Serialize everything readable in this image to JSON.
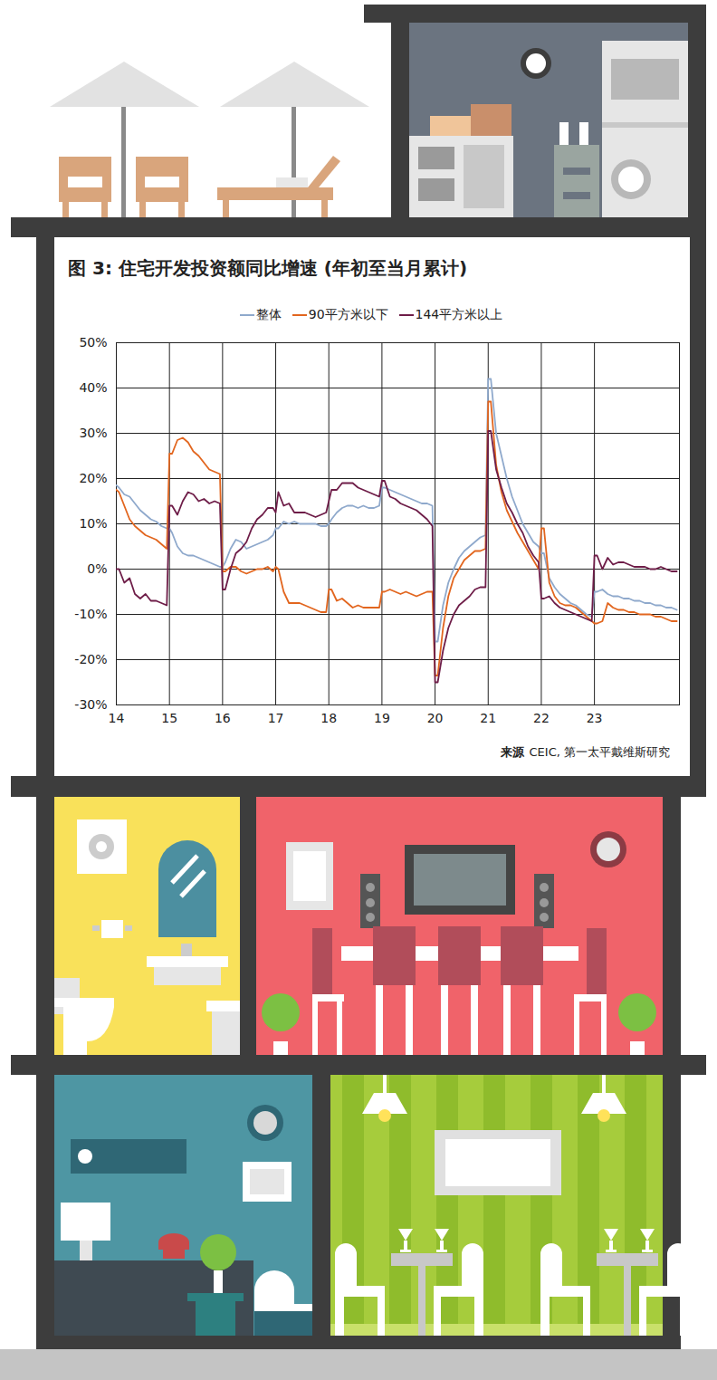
{
  "chart_data": {
    "type": "line",
    "title": "图  3: 住宅开发投资额同比增速 (年初至当月累计)",
    "source_label": "来源",
    "source": "CEIC, 第一太平戴维斯研究",
    "legend": "top",
    "grid": true,
    "xlim": [
      14,
      24.6
    ],
    "xticks": [
      14,
      15,
      16,
      17,
      18,
      19,
      20,
      21,
      22,
      23
    ],
    "ylim": [
      -30,
      50
    ],
    "yticks": [
      {
        "value": -30,
        "label": "-30%"
      },
      {
        "value": -20,
        "label": "-20%"
      },
      {
        "value": -10,
        "label": "-10%"
      },
      {
        "value": 0,
        "label": "0%"
      },
      {
        "value": 10,
        "label": "10%"
      },
      {
        "value": 20,
        "label": "20%"
      },
      {
        "value": 30,
        "label": "30%"
      },
      {
        "value": 40,
        "label": "40%"
      },
      {
        "value": 50,
        "label": "50%"
      }
    ],
    "x": [
      14,
      14.05,
      14.15,
      14.25,
      14.35,
      14.45,
      14.55,
      14.65,
      14.75,
      14.85,
      14.95,
      15,
      15.05,
      15.15,
      15.25,
      15.35,
      15.45,
      15.55,
      15.65,
      15.75,
      15.85,
      15.95,
      16,
      16.05,
      16.15,
      16.25,
      16.35,
      16.45,
      16.55,
      16.65,
      16.75,
      16.85,
      16.95,
      17,
      17.05,
      17.15,
      17.25,
      17.35,
      17.45,
      17.55,
      17.65,
      17.75,
      17.85,
      17.95,
      18,
      18.05,
      18.15,
      18.25,
      18.35,
      18.45,
      18.55,
      18.65,
      18.75,
      18.85,
      18.95,
      19,
      19.05,
      19.15,
      19.25,
      19.35,
      19.45,
      19.55,
      19.65,
      19.75,
      19.85,
      19.95,
      20,
      20.05,
      20.15,
      20.25,
      20.35,
      20.45,
      20.55,
      20.65,
      20.75,
      20.85,
      20.95,
      21,
      21.05,
      21.15,
      21.25,
      21.35,
      21.45,
      21.55,
      21.65,
      21.75,
      21.85,
      21.95,
      22,
      22.05,
      22.15,
      22.25,
      22.35,
      22.45,
      22.55,
      22.65,
      22.75,
      22.85,
      22.95,
      23,
      23.05,
      23.15,
      23.25,
      23.35,
      23.45,
      23.55,
      23.65,
      23.75,
      23.85,
      23.95,
      24.05,
      24.15,
      24.25,
      24.35,
      24.45,
      24.55
    ],
    "series": [
      {
        "name": "整体",
        "color": "#8fa9cc",
        "values": [
          18.5,
          18,
          16.5,
          16,
          14.5,
          13,
          12,
          11,
          10.5,
          9.5,
          9,
          9,
          8,
          5,
          3.5,
          3,
          3,
          2.5,
          2,
          1.5,
          1,
          0.5,
          0.5,
          1.5,
          4.5,
          6.5,
          6,
          4.5,
          5,
          5.5,
          6,
          6.5,
          7.5,
          9,
          9,
          10.5,
          10,
          10.5,
          10,
          10,
          10,
          10,
          9.5,
          9.5,
          10,
          11,
          12.5,
          13.5,
          14,
          14,
          13.5,
          14,
          13.5,
          13.5,
          14,
          18,
          18,
          17.5,
          17,
          16.5,
          16,
          15.5,
          15,
          14.5,
          14.5,
          14,
          -16,
          -16,
          -8,
          -3,
          0,
          2.5,
          4,
          5,
          6,
          7,
          7.5,
          42,
          42,
          30,
          25,
          20,
          16,
          13,
          10,
          8,
          6,
          5,
          3.5,
          3.5,
          -2,
          -4,
          -5.5,
          -6.5,
          -7.5,
          -8,
          -9,
          -10,
          -10.5,
          -5,
          -5,
          -4.5,
          -5.5,
          -6,
          -6,
          -6.5,
          -6.5,
          -7,
          -7,
          -7.5,
          -7.5,
          -8,
          -8,
          -8.5,
          -8.5,
          -9
        ]
      },
      {
        "name": "90平方米以下",
        "color": "#e2661f",
        "values": [
          17.5,
          17,
          14,
          11,
          9.5,
          8.5,
          7.5,
          7,
          6.5,
          5.5,
          4.5,
          25.5,
          25.5,
          28.5,
          29,
          28,
          26,
          25,
          23.5,
          22,
          21.5,
          21,
          -0.5,
          -0.5,
          0.5,
          0.5,
          -0.5,
          -1,
          -0.5,
          0,
          0,
          0.5,
          -0.5,
          0.5,
          0,
          -5,
          -7.5,
          -7.5,
          -7.5,
          -8,
          -8.5,
          -9,
          -9.5,
          -9.5,
          -4.5,
          -4.5,
          -7,
          -6.5,
          -7.5,
          -8.5,
          -8,
          -8.5,
          -8.5,
          -8.5,
          -8.5,
          -5,
          -5,
          -4.5,
          -5,
          -5.5,
          -5,
          -5.5,
          -6,
          -5.5,
          -5,
          -5,
          -23.5,
          -23.5,
          -13,
          -6,
          -2,
          0,
          2,
          3,
          4,
          4,
          4.5,
          37,
          37,
          23,
          17,
          13,
          10.5,
          8,
          6,
          4,
          2,
          0,
          9,
          9,
          -3,
          -6,
          -7.5,
          -8,
          -8,
          -8.5,
          -9.5,
          -10.5,
          -11.5,
          -12,
          -12,
          -11.5,
          -7.5,
          -8.5,
          -9,
          -9,
          -9.5,
          -9.5,
          -10,
          -10,
          -10,
          -10.5,
          -10.5,
          -11,
          -11.5,
          -11.5
        ]
      },
      {
        "name": "144平方米以上",
        "color": "#6e1d48",
        "values": [
          0,
          0,
          -3,
          -2,
          -5.5,
          -6.5,
          -5.5,
          -7,
          -7,
          -7.5,
          -8,
          14,
          14,
          12,
          15,
          17,
          16.5,
          15,
          15.5,
          14.5,
          15,
          14.5,
          -4.5,
          -4.5,
          0,
          3.5,
          4.5,
          6,
          9,
          11,
          12,
          13.5,
          13.5,
          12.5,
          17,
          14,
          14.5,
          12.5,
          12.5,
          12.5,
          12,
          11.5,
          12,
          12.5,
          15,
          17.5,
          17.5,
          19,
          19,
          19,
          18,
          17.5,
          17,
          16.5,
          16,
          19.5,
          19.5,
          16,
          15.5,
          14.5,
          14,
          13.5,
          13,
          12,
          11,
          9.5,
          -25,
          -25,
          -18,
          -13,
          -10,
          -8,
          -7,
          -6,
          -4.5,
          -4,
          -4,
          30.5,
          30.5,
          22,
          18,
          14.5,
          12.5,
          10,
          8,
          5,
          3,
          1.5,
          -6.5,
          -6.5,
          -6,
          -7.5,
          -8.5,
          -9,
          -9.5,
          -10,
          -10.5,
          -11,
          -11.5,
          3,
          3,
          0,
          2.5,
          1,
          1.5,
          1.5,
          1,
          0.5,
          0.5,
          0.5,
          0,
          0,
          0.5,
          0,
          -0.5,
          -0.5
        ]
      }
    ]
  }
}
